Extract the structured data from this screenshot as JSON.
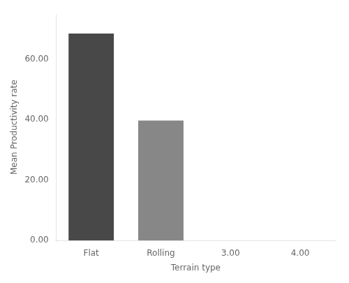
{
  "chart_data": {
    "type": "bar",
    "categories": [
      "Flat",
      "Rolling",
      "3.00",
      "4.00"
    ],
    "values": [
      68.5,
      39.7,
      null,
      null
    ],
    "colors": [
      "#484848",
      "#878787"
    ],
    "xlabel": "Terrain type",
    "ylabel": "Mean Productivity rate",
    "ylim": [
      0,
      75
    ],
    "yticks": [
      {
        "value": 0,
        "label": "0.00"
      },
      {
        "value": 20,
        "label": "20.00"
      },
      {
        "value": 40,
        "label": "40.00"
      },
      {
        "value": 60,
        "label": "60.00"
      }
    ],
    "grid": false
  }
}
